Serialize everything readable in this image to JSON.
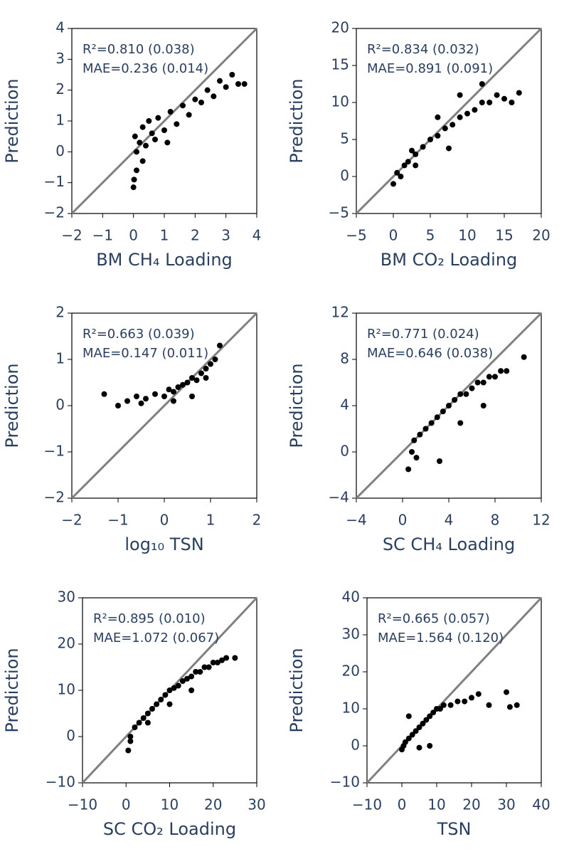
{
  "chart_data": [
    {
      "type": "scatter",
      "x_label": "BM CH₄ Loading",
      "y_label": "Prediction",
      "annotations": [
        "R²=0.810 (0.038)",
        "MAE=0.236 (0.014)"
      ],
      "color": "#000000",
      "x": [
        0,
        0.05,
        0.1,
        0.2,
        0.3,
        0.4,
        0.5,
        0.6,
        0.8,
        1.0,
        1.2,
        1.4,
        1.6,
        1.8,
        2.0,
        2.2,
        2.4,
        2.6,
        2.8,
        3.0,
        3.2,
        3.4,
        3.6,
        0.1,
        0.7,
        1.1,
        0.3,
        0.02
      ],
      "values": [
        -1.15,
        0.5,
        -0.6,
        0.3,
        0.8,
        0.2,
        1.0,
        0.6,
        1.1,
        0.7,
        1.3,
        0.9,
        1.5,
        1.2,
        1.7,
        1.6,
        2.0,
        1.8,
        2.3,
        2.1,
        2.5,
        2.2,
        2.2,
        0.0,
        0.4,
        0.3,
        -0.3,
        -0.9
      ],
      "xlim": [
        -2,
        4
      ],
      "ylim": [
        -2,
        4
      ],
      "xticks": [
        {
          "value": -2,
          "label": "−2"
        },
        {
          "value": -1,
          "label": "−1"
        },
        0,
        1,
        2,
        3,
        4
      ],
      "yticks": [
        {
          "value": -2,
          "label": "−2"
        },
        {
          "value": -1,
          "label": "−1"
        },
        0,
        1,
        2,
        3,
        4
      ]
    },
    {
      "type": "scatter",
      "x_label": "BM CO₂ Loading",
      "y_label": "Prediction",
      "annotations": [
        "R²=0.834 (0.032)",
        "MAE=0.891 (0.091)"
      ],
      "color": "#000000",
      "x": [
        0,
        0.5,
        1,
        1.5,
        2,
        3,
        4,
        5,
        6,
        7,
        8,
        9,
        10,
        11,
        12,
        13,
        14,
        15,
        16,
        17,
        3,
        6,
        9,
        12,
        2.5,
        7.5
      ],
      "values": [
        -1,
        0.5,
        0,
        1.5,
        2,
        3,
        4,
        5,
        5.5,
        6.5,
        7,
        8,
        8.5,
        9,
        10,
        10,
        11,
        10.5,
        10,
        11.3,
        1.5,
        8,
        11,
        12.5,
        3.5,
        3.8
      ],
      "xlim": [
        -5,
        20
      ],
      "ylim": [
        -5,
        20
      ],
      "xticks": [
        {
          "value": -5,
          "label": "−5"
        },
        0,
        5,
        10,
        15,
        20
      ],
      "yticks": [
        {
          "value": -5,
          "label": "−5"
        },
        0,
        5,
        10,
        15,
        20
      ]
    },
    {
      "type": "scatter",
      "x_label": "log₁₀ TSN",
      "y_label": "Prediction",
      "annotations": [
        "R²=0.663 (0.039)",
        "MAE=0.147 (0.011)"
      ],
      "color": "#000000",
      "x": [
        -1.3,
        -1.0,
        -0.8,
        -0.6,
        -0.4,
        -0.2,
        0,
        0.1,
        0.2,
        0.3,
        0.4,
        0.5,
        0.6,
        0.7,
        0.8,
        0.9,
        1.0,
        1.1,
        1.2,
        -0.5,
        0.2,
        0.6,
        0.9
      ],
      "values": [
        0.25,
        0,
        0.1,
        0.2,
        0.15,
        0.25,
        0.2,
        0.35,
        0.3,
        0.4,
        0.45,
        0.5,
        0.6,
        0.55,
        0.7,
        0.8,
        0.9,
        1.0,
        1.3,
        0.05,
        0.1,
        0.2,
        0.6
      ],
      "xlim": [
        -2,
        2
      ],
      "ylim": [
        -2,
        2
      ],
      "xticks": [
        {
          "value": -2,
          "label": "−2"
        },
        {
          "value": -1,
          "label": "−1"
        },
        0,
        1,
        2
      ],
      "yticks": [
        {
          "value": -2,
          "label": "−2"
        },
        {
          "value": -1,
          "label": "−1"
        },
        0,
        1,
        2
      ]
    },
    {
      "type": "scatter",
      "x_label": "SC CH₄ Loading",
      "y_label": "Prediction",
      "annotations": [
        "R²=0.771 (0.024)",
        "MAE=0.646 (0.038)"
      ],
      "color": "#000000",
      "x": [
        0.5,
        0.8,
        1,
        1.5,
        2,
        2.5,
        3,
        3.5,
        4,
        4.5,
        5,
        5.5,
        6,
        6.5,
        7,
        7.5,
        8,
        8.5,
        9,
        10.5,
        3.2,
        5,
        7,
        1.2
      ],
      "values": [
        -1.5,
        0,
        1,
        1.5,
        2,
        2.5,
        3,
        3.5,
        4,
        4.5,
        5,
        5,
        5.5,
        6,
        6,
        6.5,
        6.5,
        7,
        7,
        8.2,
        -0.8,
        2.5,
        4,
        -0.5
      ],
      "xlim": [
        -4,
        12
      ],
      "ylim": [
        -4,
        12
      ],
      "xticks": [
        {
          "value": -4,
          "label": "−4"
        },
        0,
        4,
        8,
        12
      ],
      "yticks": [
        {
          "value": -4,
          "label": "−4"
        },
        0,
        4,
        8,
        12
      ]
    },
    {
      "type": "scatter",
      "x_label": "SC CO₂ Loading",
      "y_label": "Prediction",
      "annotations": [
        "R²=0.895 (0.010)",
        "MAE=1.072 (0.067)"
      ],
      "color": "#000000",
      "x": [
        0.5,
        1,
        2,
        3,
        4,
        5,
        6,
        7,
        8,
        9,
        10,
        11,
        12,
        13,
        14,
        15,
        16,
        17,
        18,
        19,
        20,
        21,
        22,
        23,
        25,
        1,
        5,
        10,
        15
      ],
      "values": [
        -3,
        0,
        2,
        3,
        4,
        5,
        6,
        7,
        8,
        9,
        10,
        10.5,
        11,
        12,
        12.5,
        13,
        14,
        14,
        15,
        15,
        16,
        16,
        16.5,
        17,
        17,
        -1,
        3,
        7,
        10
      ],
      "xlim": [
        -10,
        30
      ],
      "ylim": [
        -10,
        30
      ],
      "xticks": [
        {
          "value": -10,
          "label": "−10"
        },
        0,
        10,
        20,
        30
      ],
      "yticks": [
        {
          "value": -10,
          "label": "−10"
        },
        0,
        10,
        20,
        30
      ]
    },
    {
      "type": "scatter",
      "x_label": "TSN",
      "y_label": "Prediction",
      "annotations": [
        "R²=0.665 (0.057)",
        "MAE=1.564 (0.120)"
      ],
      "color": "#000000",
      "x": [
        0,
        0.5,
        1,
        2,
        3,
        4,
        5,
        6,
        7,
        8,
        9,
        10,
        11,
        12,
        14,
        16,
        18,
        20,
        22,
        25,
        30,
        31,
        33,
        2,
        5,
        8
      ],
      "values": [
        -1,
        0,
        1,
        2,
        3,
        4,
        5,
        6,
        7,
        8,
        9,
        10,
        10,
        11,
        11,
        12,
        12,
        13,
        14,
        11,
        14.5,
        10.5,
        11,
        8,
        -0.5,
        0
      ],
      "xlim": [
        -10,
        40
      ],
      "ylim": [
        -10,
        40
      ],
      "xticks": [
        {
          "value": -10,
          "label": "−10"
        },
        0,
        10,
        20,
        30,
        40
      ],
      "yticks": [
        {
          "value": -10,
          "label": "−10"
        },
        0,
        10,
        20,
        30,
        40
      ]
    }
  ]
}
